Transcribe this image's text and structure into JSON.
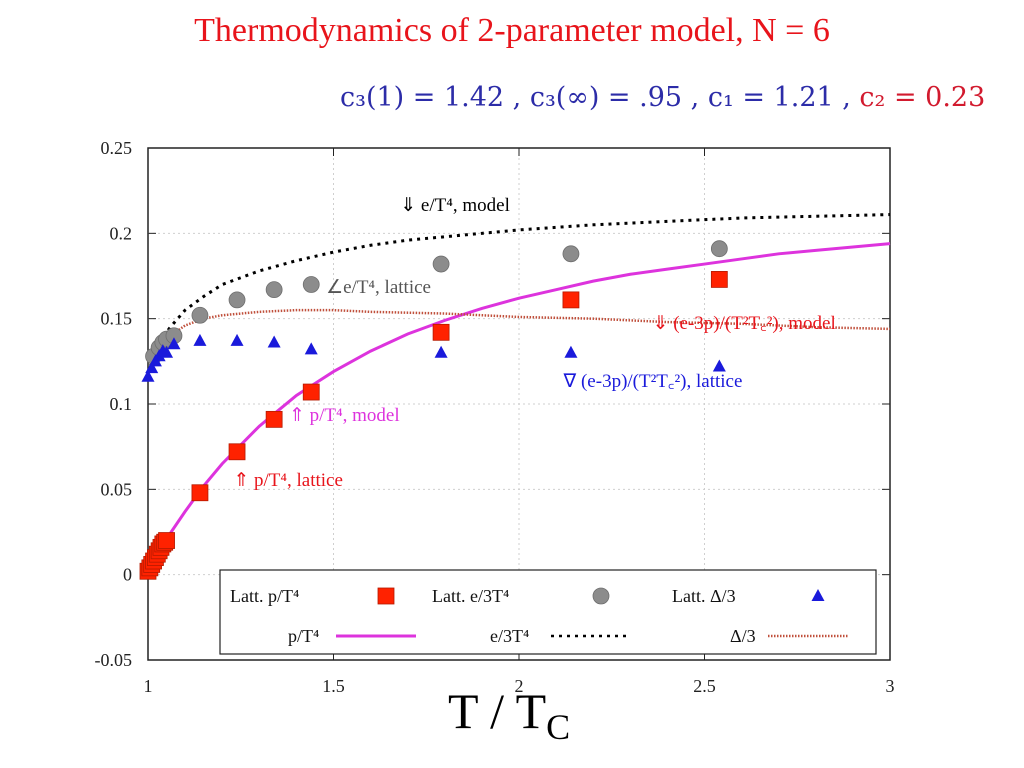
{
  "slide_title": "Thermodynamics of 2-parameter model, N = 6",
  "params": {
    "part1": "c₃(1) = 1.42 , c₃(∞) = .95 , c₁ = 1.21 , ",
    "part2": "c₂ = 0.23"
  },
  "chart_data": {
    "type": "scatter",
    "xlabel": "T / T",
    "xlabel_sub": "C",
    "ylabel": "",
    "xlim": [
      1,
      3
    ],
    "ylim": [
      -0.05,
      0.25
    ],
    "x_ticks": [
      1,
      1.5,
      2,
      2.5,
      3
    ],
    "x_tick_labels": [
      "1",
      "1.5",
      "2",
      "2.5",
      "3"
    ],
    "y_ticks": [
      -0.05,
      0,
      0.05,
      0.1,
      0.15,
      0.2,
      0.25
    ],
    "y_tick_labels": [
      "-0.05",
      "0",
      "0.05",
      "0.1",
      "0.15",
      "0.2",
      "0.25"
    ],
    "grid": true,
    "legend_position": "bottom",
    "colors": {
      "lattice_p": "#ff2200",
      "lattice_e": "#8c8c8c",
      "lattice_delta": "#1a1adb",
      "model_p": "#dd33dd",
      "model_e": "#000000",
      "model_delta": "#c0503c"
    },
    "series": [
      {
        "name": "Latt. p/T⁴",
        "kind": "scatter",
        "marker": "square",
        "x": [
          1.0,
          1.005,
          1.01,
          1.015,
          1.02,
          1.025,
          1.03,
          1.035,
          1.04,
          1.045,
          1.05,
          1.14,
          1.24,
          1.34,
          1.44,
          1.79,
          2.14,
          2.54
        ],
        "y": [
          0.002,
          0.004,
          0.006,
          0.008,
          0.01,
          0.012,
          0.014,
          0.016,
          0.018,
          0.019,
          0.02,
          0.048,
          0.072,
          0.091,
          0.107,
          0.142,
          0.161,
          0.173
        ]
      },
      {
        "name": "Latt. e/3T⁴",
        "kind": "scatter",
        "marker": "circle",
        "x": [
          1.015,
          1.03,
          1.04,
          1.05,
          1.07,
          1.14,
          1.24,
          1.34,
          1.44,
          1.79,
          2.14,
          2.54
        ],
        "y": [
          0.128,
          0.133,
          0.136,
          0.138,
          0.14,
          0.152,
          0.161,
          0.167,
          0.17,
          0.182,
          0.188,
          0.191
        ]
      },
      {
        "name": "Latt. Δ/3",
        "kind": "scatter",
        "marker": "triangle",
        "x": [
          1.0,
          1.01,
          1.02,
          1.03,
          1.04,
          1.05,
          1.07,
          1.14,
          1.24,
          1.34,
          1.44,
          1.79,
          2.14,
          2.54
        ],
        "y": [
          0.116,
          0.121,
          0.125,
          0.128,
          0.131,
          0.13,
          0.135,
          0.137,
          0.137,
          0.136,
          0.132,
          0.13,
          0.13,
          0.122
        ]
      },
      {
        "name": "p/T⁴",
        "kind": "line",
        "style": "solid",
        "x": [
          1.0,
          1.05,
          1.1,
          1.15,
          1.2,
          1.25,
          1.3,
          1.35,
          1.4,
          1.45,
          1.5,
          1.6,
          1.7,
          1.8,
          1.9,
          2.0,
          2.1,
          2.2,
          2.3,
          2.4,
          2.5,
          2.6,
          2.7,
          2.8,
          2.9,
          3.0
        ],
        "y": [
          0.0,
          0.021,
          0.037,
          0.052,
          0.065,
          0.076,
          0.087,
          0.096,
          0.105,
          0.112,
          0.119,
          0.131,
          0.141,
          0.149,
          0.156,
          0.162,
          0.167,
          0.172,
          0.176,
          0.179,
          0.182,
          0.185,
          0.188,
          0.19,
          0.192,
          0.194
        ]
      },
      {
        "name": "e/3T⁴",
        "kind": "line",
        "style": "dotted",
        "x": [
          1.0,
          1.02,
          1.04,
          1.06,
          1.08,
          1.1,
          1.15,
          1.2,
          1.3,
          1.4,
          1.5,
          1.6,
          1.7,
          1.8,
          1.9,
          2.0,
          2.2,
          2.4,
          2.6,
          2.8,
          3.0
        ],
        "y": [
          0.118,
          0.131,
          0.139,
          0.145,
          0.15,
          0.155,
          0.163,
          0.17,
          0.178,
          0.184,
          0.189,
          0.193,
          0.196,
          0.198,
          0.2,
          0.202,
          0.205,
          0.207,
          0.209,
          0.21,
          0.211
        ]
      },
      {
        "name": "Δ/3",
        "kind": "line",
        "style": "dotted",
        "x": [
          1.0,
          1.02,
          1.04,
          1.06,
          1.08,
          1.1,
          1.15,
          1.2,
          1.3,
          1.4,
          1.5,
          1.6,
          1.8,
          2.0,
          2.2,
          2.4,
          2.6,
          2.8,
          3.0
        ],
        "y": [
          0.118,
          0.128,
          0.134,
          0.139,
          0.143,
          0.146,
          0.15,
          0.152,
          0.154,
          0.155,
          0.155,
          0.154,
          0.153,
          0.151,
          0.15,
          0.148,
          0.147,
          0.145,
          0.144
        ]
      }
    ],
    "annotations": [
      {
        "text": "⇓ e/T⁴, model",
        "color": "#000000",
        "x": 1.68,
        "y": 0.213
      },
      {
        "text": "∠e/T⁴, lattice",
        "color": "#555555",
        "x": 1.48,
        "y": 0.165
      },
      {
        "text": "⇓ (e-3p)/(T²T꜀²), model",
        "color": "#e8141b",
        "x": 2.36,
        "y": 0.144
      },
      {
        "text": "∇ (e-3p)/(T²T꜀²), lattice",
        "color": "#1a1adb",
        "x": 2.12,
        "y": 0.11
      },
      {
        "text": "⇑ p/T⁴, model",
        "color": "#dd33dd",
        "x": 1.38,
        "y": 0.09
      },
      {
        "text": "⇑ p/T⁴, lattice",
        "color": "#e8141b",
        "x": 1.23,
        "y": 0.052
      }
    ],
    "legend": [
      {
        "label": "Latt. p/T⁴",
        "symbol": "square",
        "color": "#ff2200"
      },
      {
        "label": "Latt. e/3T⁴",
        "symbol": "circle",
        "color": "#8c8c8c"
      },
      {
        "label": "Latt. Δ/3",
        "symbol": "triangle",
        "color": "#1a1adb"
      },
      {
        "label": "p/T⁴",
        "symbol": "solid-line",
        "color": "#dd33dd"
      },
      {
        "label": "e/3T⁴",
        "symbol": "dotted-line",
        "color": "#000000"
      },
      {
        "label": "Δ/3",
        "symbol": "dotted-line",
        "color": "#c0503c"
      }
    ]
  }
}
